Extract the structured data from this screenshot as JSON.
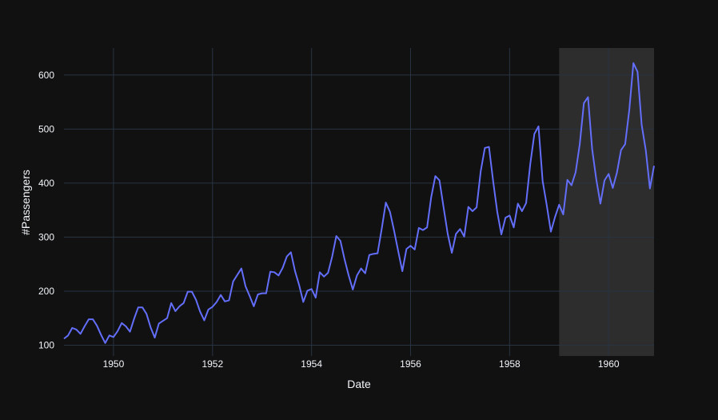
{
  "chart_data": {
    "type": "line",
    "title": "",
    "xlabel": "Date",
    "ylabel": "#Passengers",
    "xlim": [
      "1949-01",
      "1960-12"
    ],
    "ylim": [
      80,
      650
    ],
    "x_ticks": [
      "1950",
      "1952",
      "1954",
      "1956",
      "1958",
      "1960"
    ],
    "y_ticks": [
      100,
      200,
      300,
      400,
      500,
      600
    ],
    "grid": true,
    "legend": "none",
    "highlight_range": [
      "1959-01",
      "1960-12"
    ],
    "colors": {
      "background": "#111111",
      "grid": "#283442",
      "line": "#636efa",
      "highlight": "#2d2d2d",
      "text": "#f2f5fa"
    },
    "x_start": "1949-01",
    "x_step": "month",
    "values": [
      112,
      118,
      132,
      129,
      121,
      135,
      148,
      148,
      136,
      119,
      104,
      118,
      115,
      126,
      141,
      135,
      125,
      149,
      170,
      170,
      158,
      133,
      114,
      140,
      145,
      150,
      178,
      163,
      172,
      178,
      199,
      199,
      184,
      162,
      146,
      166,
      171,
      180,
      193,
      181,
      183,
      218,
      230,
      242,
      209,
      191,
      172,
      194,
      196,
      196,
      236,
      235,
      229,
      243,
      264,
      272,
      237,
      211,
      180,
      201,
      204,
      188,
      235,
      227,
      234,
      264,
      302,
      293,
      259,
      229,
      203,
      229,
      242,
      233,
      267,
      269,
      270,
      315,
      364,
      347,
      312,
      274,
      237,
      278,
      284,
      277,
      317,
      313,
      318,
      374,
      413,
      405,
      355,
      306,
      271,
      306,
      315,
      301,
      356,
      348,
      355,
      422,
      465,
      467,
      404,
      347,
      305,
      336,
      340,
      318,
      362,
      348,
      363,
      435,
      491,
      505,
      404,
      359,
      310,
      337,
      360,
      342,
      406,
      396,
      420,
      472,
      548,
      559,
      463,
      407,
      362,
      405,
      417,
      391,
      419,
      461,
      472,
      535,
      622,
      606,
      508,
      461,
      390,
      432
    ]
  }
}
